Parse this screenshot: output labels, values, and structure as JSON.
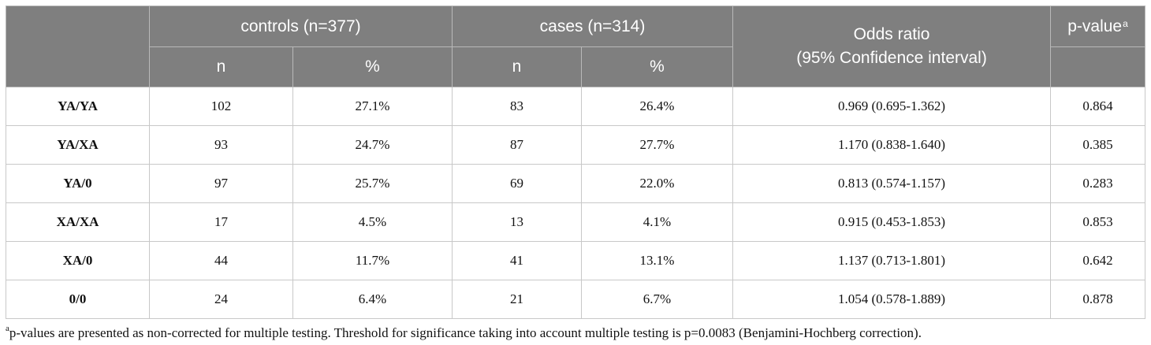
{
  "table": {
    "group_headers": {
      "controls": "controls (n=377)",
      "cases": "cases (n=314)",
      "odds_line1": "Odds ratio",
      "odds_line2": "(95% Confidence interval)",
      "pvalue": "p-value",
      "pvalue_sup": "a"
    },
    "sub_headers": {
      "controls_n": "n",
      "controls_pct": "%",
      "cases_n": "n",
      "cases_pct": "%"
    },
    "rows": [
      {
        "genotype": "YA/YA",
        "controls_n": "102",
        "controls_pct": "27.1%",
        "cases_n": "83",
        "cases_pct": "26.4%",
        "odds_ratio": "0.969 (0.695-1.362)",
        "p_value": "0.864"
      },
      {
        "genotype": "YA/XA",
        "controls_n": "93",
        "controls_pct": "24.7%",
        "cases_n": "87",
        "cases_pct": "27.7%",
        "odds_ratio": "1.170 (0.838-1.640)",
        "p_value": "0.385"
      },
      {
        "genotype": "YA/0",
        "controls_n": "97",
        "controls_pct": "25.7%",
        "cases_n": "69",
        "cases_pct": "22.0%",
        "odds_ratio": "0.813 (0.574-1.157)",
        "p_value": "0.283"
      },
      {
        "genotype": "XA/XA",
        "controls_n": "17",
        "controls_pct": "4.5%",
        "cases_n": "13",
        "cases_pct": "4.1%",
        "odds_ratio": "0.915 (0.453-1.853)",
        "p_value": "0.853"
      },
      {
        "genotype": "XA/0",
        "controls_n": "44",
        "controls_pct": "11.7%",
        "cases_n": "41",
        "cases_pct": "13.1%",
        "odds_ratio": "1.137 (0.713-1.801)",
        "p_value": "0.642"
      },
      {
        "genotype": "0/0",
        "controls_n": "24",
        "controls_pct": "6.4%",
        "cases_n": "21",
        "cases_pct": "6.7%",
        "odds_ratio": "1.054 (0.578-1.889)",
        "p_value": "0.878"
      }
    ]
  },
  "footnote": {
    "marker": "a",
    "text": "p-values are presented as non-corrected for multiple testing. Threshold for significance taking into account multiple testing is p=0.0083 (Benjamini-Hochberg correction)."
  },
  "colors": {
    "header_bg": "#7f7f7f",
    "header_text": "#ffffff",
    "grid": "#c8c8c8"
  }
}
